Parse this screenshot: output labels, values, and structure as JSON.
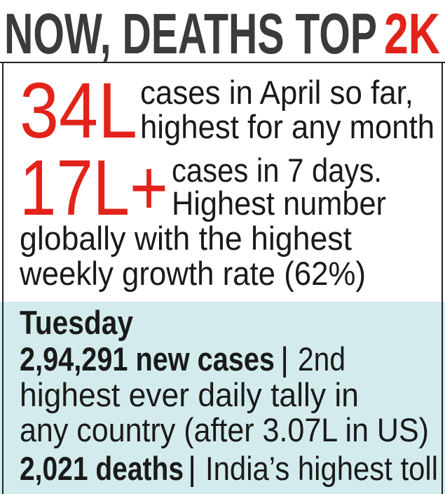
{
  "header": {
    "title": "NOW, DEATHS TOP",
    "title_highlight": "2K"
  },
  "stats": [
    {
      "figure": "34L",
      "lines": [
        "cases in April so far,",
        "highest for any month"
      ]
    },
    {
      "figure": "17L+",
      "lines": [
        "cases in 7 days.",
        "Highest number",
        "globally with the highest",
        "weekly growth rate (62%)"
      ]
    }
  ],
  "tuesday": {
    "heading": "Tuesday",
    "cases": {
      "highlight": "2,94,291 new cases",
      "separator": "|",
      "text": "2nd",
      "lines": [
        "highest ever daily tally in",
        "any country (after 3.07L in US)"
      ]
    },
    "deaths": {
      "highlight": "2,021 deaths",
      "separator": "|",
      "text": "India’s highest toll"
    }
  }
}
